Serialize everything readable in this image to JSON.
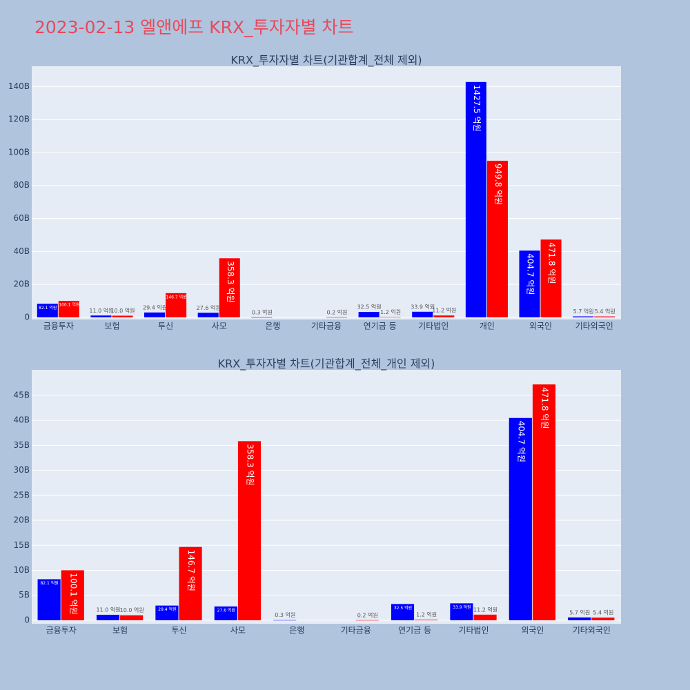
{
  "title": "2023-02-13 엘앤에프 KRX_투자자별 차트",
  "chart_data": [
    {
      "type": "bar",
      "title": "KRX_투자자별 차트(기관합계_전체 제외)",
      "categories": [
        "금융투자",
        "보험",
        "투신",
        "사모",
        "은행",
        "기타금융",
        "연기금 등",
        "기타법인",
        "개인",
        "외국인",
        "기타외국인"
      ],
      "series": [
        {
          "color": "#0000ff",
          "values": [
            8210000000,
            1100000000,
            2940000000,
            2760000000,
            30000000,
            null,
            3250000000,
            3390000000,
            142750000000,
            40470000000,
            570000000
          ],
          "value_labels": [
            "82.1 억원",
            "11.0 억원",
            "29.4 억원",
            "27.6 억원",
            "0.3 억원",
            null,
            "32.5 억원",
            "33.9 억원",
            "1427.5 억원",
            "404.7 억원",
            "5.7 억원"
          ]
        },
        {
          "color": "#ff0000",
          "values": [
            10010000000,
            1000000000,
            14670000000,
            35830000000,
            null,
            20000000,
            120000000,
            1120000000,
            94980000000,
            47180000000,
            540000000
          ],
          "value_labels": [
            "100.1 억원",
            "10.0 억원",
            "146.7 억원",
            "358.3 억원",
            null,
            "0.2 억원",
            "1.2 억원",
            "11.2 억원",
            "949.8 억원",
            "471.8 억원",
            "5.4 억원"
          ]
        }
      ],
      "ylim": [
        -1300000000,
        152300000000
      ],
      "yticks": [
        0,
        {
          "value": 20000000000,
          "label": "20B"
        },
        {
          "value": 40000000000,
          "label": "40B"
        },
        {
          "value": 60000000000,
          "label": "60B"
        },
        {
          "value": 80000000000,
          "label": "80B"
        },
        {
          "value": 100000000000,
          "label": "100B"
        },
        {
          "value": 120000000000,
          "label": "120B"
        },
        {
          "value": 140000000000,
          "label": "140B"
        }
      ],
      "grid": true
    },
    {
      "type": "bar",
      "title": "KRX_투자자별 차트(기관합계_전체_개인 제외)",
      "categories": [
        "금융투자",
        "보험",
        "투신",
        "사모",
        "은행",
        "기타금융",
        "연기금 등",
        "기타법인",
        "외국인",
        "기타외국인"
      ],
      "series": [
        {
          "color": "#0000ff",
          "values": [
            8210000000,
            1100000000,
            2940000000,
            2760000000,
            30000000,
            null,
            3250000000,
            3390000000,
            40470000000,
            570000000
          ],
          "value_labels": [
            "82.1 억원",
            "11.0 억원",
            "29.4 억원",
            "27.6 억원",
            "0.3 억원",
            null,
            "32.5 억원",
            "33.9 억원",
            "404.7 억원",
            "5.7 억원"
          ]
        },
        {
          "color": "#ff0000",
          "values": [
            10010000000,
            1000000000,
            14670000000,
            35830000000,
            null,
            20000000,
            120000000,
            1120000000,
            47180000000,
            540000000
          ],
          "value_labels": [
            "100.1 억원",
            "10.0 억원",
            "146.7 억원",
            "358.3 억원",
            null,
            "0.2 억원",
            "1.2 억원",
            "11.2 억원",
            "471.8 억원",
            "5.4 억원"
          ]
        }
      ],
      "ylim": [
        -700000000,
        50100000000
      ],
      "yticks": [
        0,
        {
          "value": 5000000000,
          "label": "5B"
        },
        {
          "value": 10000000000,
          "label": "10B"
        },
        {
          "value": 15000000000,
          "label": "15B"
        },
        {
          "value": 20000000000,
          "label": "20B"
        },
        {
          "value": 25000000000,
          "label": "25B"
        },
        {
          "value": 30000000000,
          "label": "30B"
        },
        {
          "value": 35000000000,
          "label": "35B"
        },
        {
          "value": 40000000000,
          "label": "40B"
        },
        {
          "value": 45000000000,
          "label": "45B"
        }
      ],
      "grid": true
    }
  ]
}
